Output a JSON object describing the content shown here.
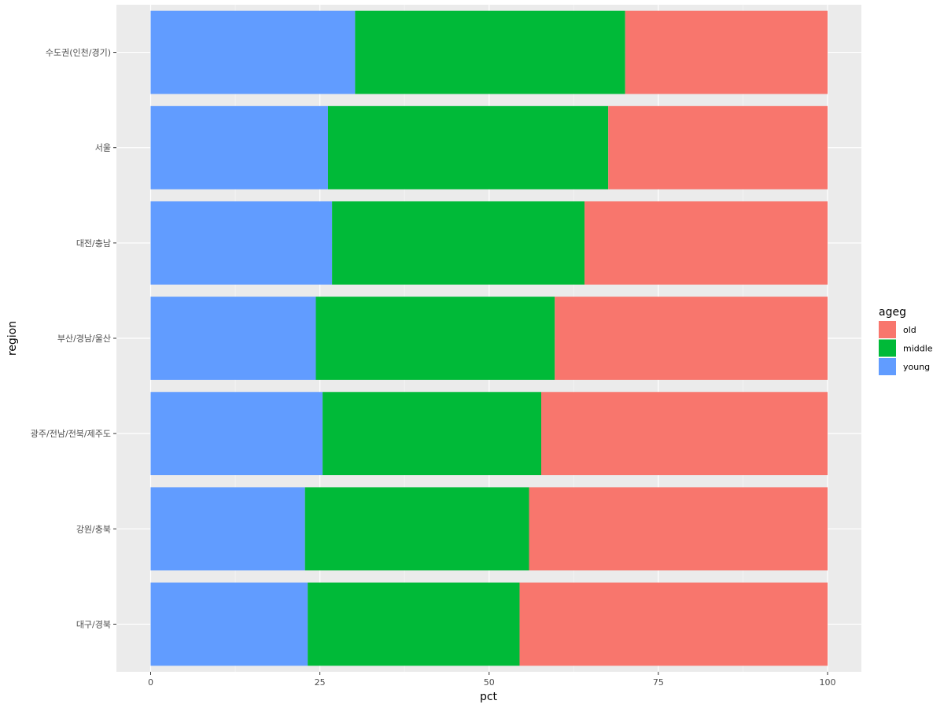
{
  "chart_data": {
    "type": "bar",
    "orientation": "horizontal",
    "stacked": true,
    "title": "",
    "xlabel": "pct",
    "ylabel": "region",
    "xlim": [
      0,
      100
    ],
    "x_ticks": [
      0,
      25,
      50,
      75,
      100
    ],
    "grid": true,
    "categories": [
      "수도권(인천/경기)",
      "서울",
      "대전/충남",
      "부산/경남/울산",
      "광주/전남/전북/제주도",
      "강원/충북",
      "대구/경북"
    ],
    "stack_order": [
      "young",
      "middle",
      "old"
    ],
    "series": [
      {
        "name": "young",
        "color": "#619CFF",
        "values": [
          30.2,
          26.2,
          26.8,
          24.4,
          25.4,
          22.8,
          23.2
        ]
      },
      {
        "name": "middle",
        "color": "#00BA38",
        "values": [
          39.9,
          41.4,
          37.3,
          35.3,
          32.3,
          33.1,
          31.3
        ]
      },
      {
        "name": "old",
        "color": "#F8766D",
        "values": [
          29.9,
          32.4,
          35.9,
          40.3,
          42.3,
          44.1,
          45.5
        ]
      }
    ],
    "legend": {
      "title": "ageg",
      "placement": "right",
      "entries": [
        "old",
        "middle",
        "young"
      ]
    },
    "colors": {
      "panel_background": "#EBEBEB",
      "grid_major": "#FFFFFF",
      "grid_minor": "#F5F5F5",
      "tick_text": "#4D4D4D",
      "tick_mark": "#333333"
    }
  }
}
